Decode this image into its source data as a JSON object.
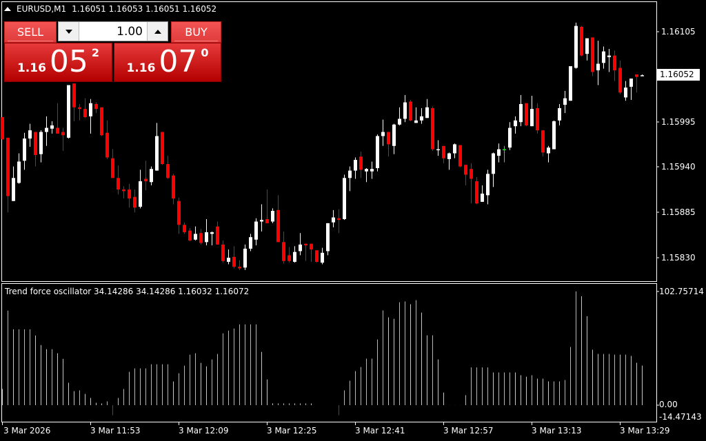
{
  "header": {
    "symbol": "EURUSD,M1",
    "ohlc_text": "1.16051 1.16053 1.16051 1.16052"
  },
  "trade_panel": {
    "sell_label": "SELL",
    "buy_label": "BUY",
    "lot_value": "1.00",
    "sell_price": {
      "prefix": "1.16",
      "big": "05",
      "sup": "2"
    },
    "buy_price": {
      "prefix": "1.16",
      "big": "07",
      "sup": "0"
    }
  },
  "price_axis": {
    "labels": [
      "1.16105",
      "1.15995",
      "1.15940",
      "1.15885",
      "1.15830"
    ],
    "current_price": "1.16052"
  },
  "indicator": {
    "title": "Trend force oscillator 34.14286 34.14286 1.16032 1.16072",
    "axis_labels": [
      "102.75714",
      "0.00",
      "-14.47143"
    ]
  },
  "time_axis": {
    "labels": [
      "3 Mar 2026",
      "3 Mar 11:53",
      "3 Mar 12:09",
      "3 Mar 12:25",
      "3 Mar 12:41",
      "3 Mar 12:57",
      "3 Mar 13:13",
      "3 Mar 13:29"
    ]
  },
  "colors": {
    "background": "#000000",
    "bull": "#ffffff",
    "bear": "#ff0000",
    "doji": "#00ff00",
    "hist_green": "#7cfc00",
    "hist_yellow": "#ffd700",
    "hist_red": "#ff0000",
    "panel_red": "#d42020"
  },
  "chart_data": [
    {
      "type": "candlestick",
      "ylim": [
        1.15812,
        1.1615
      ],
      "ohlc": [
        [
          1.16001,
          1.16001,
          1.15974,
          1.15974
        ],
        [
          1.15976,
          1.15976,
          1.15885,
          1.15905
        ],
        [
          1.15899,
          1.15941,
          1.15899,
          1.15927
        ],
        [
          1.15921,
          1.15957,
          1.1592,
          1.15947
        ],
        [
          1.15948,
          1.15982,
          1.15937,
          1.15975
        ],
        [
          1.15975,
          1.15993,
          1.15965,
          1.15985
        ],
        [
          1.15983,
          1.15983,
          1.15941,
          1.15955
        ],
        [
          1.15956,
          1.15985,
          1.15946,
          1.15983
        ],
        [
          1.15983,
          1.16002,
          1.15966,
          1.15988
        ],
        [
          1.15987,
          1.15996,
          1.15981,
          1.15991
        ],
        [
          1.15988,
          1.16018,
          1.15981,
          1.15981
        ],
        [
          1.15983,
          1.15988,
          1.1596,
          1.15979
        ],
        [
          1.15976,
          1.1604,
          1.15975,
          1.1604
        ],
        [
          1.16042,
          1.16042,
          1.15996,
          1.16013
        ],
        [
          1.16013,
          1.16017,
          1.15997,
          1.16011
        ],
        [
          1.16011,
          1.16024,
          1.16,
          1.16001
        ],
        [
          1.16002,
          1.16023,
          1.15981,
          1.16018
        ],
        [
          1.16017,
          1.16019,
          1.16006,
          1.16011
        ],
        [
          1.16013,
          1.16013,
          1.15978,
          1.15979
        ],
        [
          1.15982,
          1.15997,
          1.1595,
          1.15952
        ],
        [
          1.15951,
          1.15962,
          1.15927,
          1.15927
        ],
        [
          1.15927,
          1.15942,
          1.15907,
          1.15913
        ],
        [
          1.15913,
          1.15917,
          1.15902,
          1.15911
        ],
        [
          1.15913,
          1.1592,
          1.15891,
          1.15902
        ],
        [
          1.15904,
          1.15913,
          1.15885,
          1.15891
        ],
        [
          1.15892,
          1.15937,
          1.1589,
          1.15923
        ],
        [
          1.15926,
          1.15948,
          1.15912,
          1.15923
        ],
        [
          1.15922,
          1.15941,
          1.15918,
          1.15938
        ],
        [
          1.15936,
          1.15994,
          1.15936,
          1.15978
        ],
        [
          1.15983,
          1.15983,
          1.15943,
          1.15944
        ],
        [
          1.15944,
          1.15954,
          1.15926,
          1.15927
        ],
        [
          1.1593,
          1.15932,
          1.15895,
          1.15902
        ],
        [
          1.15899,
          1.15903,
          1.15859,
          1.1587
        ],
        [
          1.1587,
          1.15873,
          1.15859,
          1.15861
        ],
        [
          1.15863,
          1.15866,
          1.1585,
          1.15851
        ],
        [
          1.15852,
          1.15868,
          1.15851,
          1.15859
        ],
        [
          1.1586,
          1.15865,
          1.15846,
          1.15848
        ],
        [
          1.15849,
          1.15877,
          1.15845,
          1.15861
        ],
        [
          1.15859,
          1.15862,
          1.15845,
          1.15861
        ],
        [
          1.15868,
          1.15874,
          1.15846,
          1.15846
        ],
        [
          1.15846,
          1.15851,
          1.15824,
          1.15826
        ],
        [
          1.15825,
          1.1584,
          1.15822,
          1.1583
        ],
        [
          1.15831,
          1.15844,
          1.15817,
          1.15819
        ],
        [
          1.15819,
          1.15827,
          1.15815,
          1.15817
        ],
        [
          1.15818,
          1.15846,
          1.15815,
          1.15841
        ],
        [
          1.15841,
          1.15859,
          1.15838,
          1.15855
        ],
        [
          1.15852,
          1.15878,
          1.15845,
          1.15874
        ],
        [
          1.15874,
          1.15895,
          1.15862,
          1.15876
        ],
        [
          1.15877,
          1.15913,
          1.15872,
          1.15872
        ],
        [
          1.15874,
          1.1589,
          1.15872,
          1.15887
        ],
        [
          1.15888,
          1.15906,
          1.15849,
          1.15849
        ],
        [
          1.15849,
          1.15862,
          1.15823,
          1.15826
        ],
        [
          1.15833,
          1.15843,
          1.15824,
          1.15826
        ],
        [
          1.15825,
          1.15844,
          1.15824,
          1.15837
        ],
        [
          1.15838,
          1.1586,
          1.15833,
          1.15846
        ],
        [
          1.15847,
          1.15847,
          1.15826,
          1.15845
        ],
        [
          1.15847,
          1.15847,
          1.15825,
          1.1584
        ],
        [
          1.15839,
          1.15839,
          1.15824,
          1.15825
        ],
        [
          1.15824,
          1.15842,
          1.15822,
          1.15836
        ],
        [
          1.15838,
          1.15872,
          1.15833,
          1.15872
        ],
        [
          1.15873,
          1.15888,
          1.15867,
          1.15879
        ],
        [
          1.15878,
          1.15889,
          1.1586,
          1.15876
        ],
        [
          1.15877,
          1.15931,
          1.15876,
          1.15927
        ],
        [
          1.15927,
          1.15941,
          1.15911,
          1.15936
        ],
        [
          1.15936,
          1.15952,
          1.15926,
          1.15949
        ],
        [
          1.15953,
          1.15959,
          1.15927,
          1.15937
        ],
        [
          1.15935,
          1.15939,
          1.15922,
          1.15938
        ],
        [
          1.15935,
          1.15947,
          1.15926,
          1.15938
        ],
        [
          1.15939,
          1.1598,
          1.15935,
          1.15978
        ],
        [
          1.15978,
          1.15998,
          1.15966,
          1.15983
        ],
        [
          1.15983,
          1.15983,
          1.15953,
          1.15968
        ],
        [
          1.15966,
          1.15993,
          1.15956,
          1.15992
        ],
        [
          1.15992,
          1.16013,
          1.15991,
          1.15999
        ],
        [
          1.15999,
          1.16028,
          1.15995,
          1.16019
        ],
        [
          1.1602,
          1.16022,
          1.15996,
          1.15997
        ],
        [
          1.15994,
          1.16013,
          1.15994,
          1.15997
        ],
        [
          1.15997,
          1.16012,
          1.15993,
          1.16002
        ],
        [
          1.16,
          1.16023,
          1.16,
          1.16013
        ],
        [
          1.16012,
          1.16014,
          1.1596,
          1.15962
        ],
        [
          1.15961,
          1.15973,
          1.15954,
          1.15962
        ],
        [
          1.15966,
          1.15966,
          1.15945,
          1.15951
        ],
        [
          1.1595,
          1.15958,
          1.15937,
          1.15957
        ],
        [
          1.15957,
          1.15969,
          1.15951,
          1.15968
        ],
        [
          1.15967,
          1.15967,
          1.1594,
          1.15941
        ],
        [
          1.15943,
          1.15943,
          1.15918,
          1.15931
        ],
        [
          1.15938,
          1.15945,
          1.15896,
          1.15926
        ],
        [
          1.15923,
          1.15928,
          1.15895,
          1.15896
        ],
        [
          1.15898,
          1.15918,
          1.15898,
          1.15908
        ],
        [
          1.15906,
          1.15937,
          1.15895,
          1.15932
        ],
        [
          1.15932,
          1.15958,
          1.15916,
          1.15957
        ],
        [
          1.15954,
          1.15969,
          1.15946,
          1.15962
        ],
        [
          1.15962,
          1.15966,
          1.15946,
          1.15962
        ],
        [
          1.15964,
          1.15995,
          1.15961,
          1.15988
        ],
        [
          1.1599,
          1.16002,
          1.15981,
          1.15997
        ],
        [
          1.15995,
          1.16028,
          1.1599,
          1.16017
        ],
        [
          1.16018,
          1.16018,
          1.1599,
          1.15991
        ],
        [
          1.1599,
          1.16027,
          1.1599,
          1.16011
        ],
        [
          1.16012,
          1.16018,
          1.15981,
          1.15985
        ],
        [
          1.15985,
          1.15985,
          1.15953,
          1.15958
        ],
        [
          1.15957,
          1.15966,
          1.15946,
          1.15964
        ],
        [
          1.15962,
          1.15997,
          1.15962,
          1.15996
        ],
        [
          1.15997,
          1.16017,
          1.15991,
          1.16012
        ],
        [
          1.16016,
          1.16033,
          1.16006,
          1.16024
        ],
        [
          1.16021,
          1.16063,
          1.16021,
          1.16063
        ],
        [
          1.16061,
          1.16116,
          1.1606,
          1.16112
        ],
        [
          1.16111,
          1.16112,
          1.16075,
          1.16076
        ],
        [
          1.16078,
          1.16097,
          1.1607,
          1.16097
        ],
        [
          1.16098,
          1.16098,
          1.16051,
          1.16056
        ],
        [
          1.16058,
          1.16094,
          1.1604,
          1.16066
        ],
        [
          1.16067,
          1.16087,
          1.1606,
          1.16081
        ],
        [
          1.16074,
          1.16084,
          1.16056,
          1.16076
        ],
        [
          1.16076,
          1.16082,
          1.16045,
          1.16058
        ],
        [
          1.16061,
          1.1607,
          1.16029,
          1.16031
        ],
        [
          1.16025,
          1.16045,
          1.16021,
          1.16037
        ],
        [
          1.16038,
          1.16048,
          1.16022,
          1.16048
        ],
        [
          1.16053,
          1.16053,
          1.16031,
          1.1605
        ],
        [
          1.16051,
          1.16053,
          1.16051,
          1.16052
        ]
      ]
    },
    {
      "type": "bar",
      "title": "Trend force oscillator 34.14286 34.14286 1.16032 1.16072",
      "ylim": [
        -14.47143,
        102.75714
      ],
      "values": [
        14.6,
        85.4,
        68.6,
        68.6,
        68.6,
        68.6,
        63.0,
        54.3,
        50.6,
        50.6,
        46.9,
        41.9,
        20.2,
        12.7,
        13.4,
        10.2,
        6.5,
        2.2,
        0.9,
        3.4,
        -9.0,
        6.5,
        14.6,
        30.1,
        33.2,
        33.2,
        33.2,
        37.0,
        37.0,
        37.0,
        37.0,
        21.4,
        28.9,
        35.7,
        45.6,
        46.9,
        38.2,
        35.1,
        41.3,
        46.3,
        64.9,
        67.4,
        69.3,
        73.0,
        73.0,
        73.0,
        73.0,
        48.1,
        23.3,
        1.6,
        1.6,
        1.6,
        1.6,
        1.6,
        1.6,
        1.6,
        0.9,
        0,
        0,
        0,
        0,
        -9.0,
        13.4,
        22.1,
        30.8,
        34.5,
        42.0,
        42.0,
        59.4,
        85.6,
        79.4,
        78.1,
        93.0,
        93.7,
        91.2,
        94.9,
        83.7,
        63.1,
        63.1,
        41.3,
        11.4,
        -0.5,
        -0.5,
        -0.5,
        9.0,
        34.2,
        34.2,
        34.2,
        34.2,
        29.6,
        29.6,
        29.6,
        29.6,
        29.6,
        27.1,
        25.8,
        27.1,
        24.0,
        24.0,
        21.5,
        21.5,
        21.5,
        22.7,
        52.6,
        102.8,
        98.4,
        80.4,
        50.1,
        46.3,
        46.3,
        46.3,
        45.7,
        45.7,
        45.7,
        44.5,
        38.3,
        35.8
      ],
      "colors": [
        "g",
        "g",
        "y",
        "g",
        "g",
        "g",
        "y",
        "y",
        "y",
        "g",
        "y",
        "y",
        "y",
        "y",
        "g",
        "y",
        "y",
        "y",
        "y",
        "g",
        "r",
        "g",
        "g",
        "g",
        "g",
        "g",
        "g",
        "g",
        "g",
        "g",
        "g",
        "y",
        "g",
        "g",
        "g",
        "g",
        "y",
        "y",
        "g",
        "g",
        "g",
        "g",
        "g",
        "g",
        "g",
        "g",
        "g",
        "y",
        "y",
        "y",
        "g",
        "g",
        "g",
        "g",
        "g",
        "g",
        "y",
        "g",
        "g",
        "g",
        "g",
        "r",
        "g",
        "g",
        "g",
        "g",
        "g",
        "g",
        "g",
        "g",
        "y",
        "y",
        "g",
        "g",
        "y",
        "g",
        "y",
        "y",
        "g",
        "y",
        "y",
        "r",
        "r",
        "r",
        "g",
        "g",
        "g",
        "g",
        "g",
        "y",
        "g",
        "g",
        "g",
        "y",
        "y",
        "y",
        "g",
        "y",
        "y",
        "y",
        "g",
        "g",
        "g",
        "g",
        "g",
        "y",
        "y",
        "y",
        "y",
        "g",
        "g",
        "g",
        "y",
        "g",
        "y",
        "y",
        "y"
      ]
    }
  ]
}
